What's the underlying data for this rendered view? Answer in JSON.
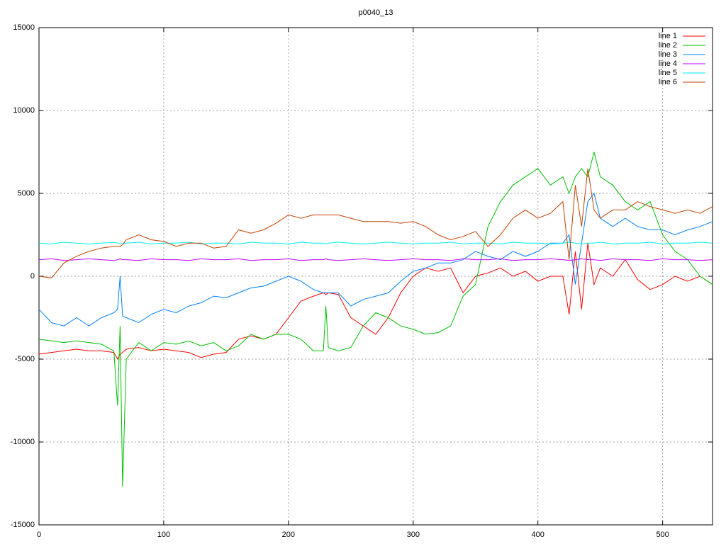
{
  "chart_data": {
    "type": "line",
    "title": "p0040_13",
    "x": [
      0,
      10,
      20,
      30,
      40,
      50,
      60,
      63,
      65,
      67,
      70,
      80,
      90,
      100,
      110,
      120,
      130,
      140,
      150,
      160,
      170,
      180,
      190,
      200,
      210,
      220,
      228,
      230,
      232,
      240,
      250,
      260,
      270,
      280,
      290,
      300,
      310,
      320,
      330,
      340,
      350,
      360,
      370,
      380,
      390,
      400,
      410,
      420,
      425,
      430,
      435,
      440,
      445,
      450,
      460,
      470,
      480,
      490,
      500,
      510,
      520,
      530,
      540
    ],
    "xlim": [
      0,
      540
    ],
    "xticks": [
      0,
      100,
      200,
      300,
      400,
      500
    ],
    "ylim": [
      -15000,
      15000
    ],
    "yticks": [
      -15000,
      -10000,
      -5000,
      0,
      5000,
      10000,
      15000
    ],
    "grid": true,
    "legend": "top-right",
    "series": [
      {
        "name": "line 1",
        "color": "#ff0000",
        "values": [
          -4700,
          -4600,
          -4500,
          -4400,
          -4500,
          -4500,
          -4600,
          -5000,
          -4700,
          -4600,
          -4400,
          -4300,
          -4500,
          -4400,
          -4500,
          -4600,
          -4900,
          -4700,
          -4600,
          -3800,
          -3600,
          -3800,
          -3500,
          -2500,
          -1500,
          -1200,
          -1000,
          -1100,
          -1000,
          -1100,
          -2500,
          -3000,
          -3500,
          -2500,
          -1000,
          0,
          500,
          300,
          500,
          -1000,
          0,
          200,
          500,
          0,
          300,
          -300,
          0,
          0,
          -2300,
          1500,
          -2000,
          2000,
          -500,
          500,
          0,
          1000,
          -200,
          -800,
          -500,
          0,
          -300,
          0,
          -500
        ]
      },
      {
        "name": "line 2",
        "color": "#00c000",
        "values": [
          -3800,
          -3900,
          -4000,
          -3900,
          -4000,
          -4100,
          -4500,
          -7800,
          -3000,
          -12700,
          -5000,
          -4000,
          -4500,
          -4000,
          -4100,
          -3900,
          -4200,
          -4000,
          -4500,
          -4200,
          -3500,
          -3800,
          -3500,
          -3500,
          -3800,
          -4500,
          -4500,
          -1800,
          -4300,
          -4500,
          -4300,
          -3000,
          -2200,
          -2500,
          -3000,
          -3200,
          -3500,
          -3400,
          -3000,
          -1200,
          -500,
          3000,
          4500,
          5500,
          6000,
          6500,
          5500,
          6000,
          5000,
          6000,
          6500,
          6000,
          7500,
          6000,
          5500,
          4500,
          4000,
          4500,
          2500,
          1500,
          1000,
          0,
          -500
        ]
      },
      {
        "name": "line 3",
        "color": "#0080ff",
        "values": [
          -2000,
          -2800,
          -3000,
          -2500,
          -3000,
          -2500,
          -2200,
          -2000,
          0,
          -2400,
          -2500,
          -2800,
          -2300,
          -2000,
          -2200,
          -1800,
          -1600,
          -1200,
          -1300,
          -1000,
          -700,
          -600,
          -300,
          0,
          -300,
          -800,
          -1000,
          -1000,
          -1000,
          -1000,
          -1800,
          -1400,
          -1200,
          -1000,
          -300,
          300,
          500,
          800,
          800,
          1000,
          1500,
          1200,
          1000,
          1500,
          1200,
          1500,
          2000,
          2000,
          2500,
          -500,
          2000,
          4500,
          5000,
          3500,
          3000,
          3500,
          3000,
          2800,
          2800,
          2500,
          2800,
          3000,
          3300
        ]
      },
      {
        "name": "line 4",
        "color": "#c000ff",
        "values": [
          1000,
          1050,
          950,
          1000,
          1050,
          1000,
          950,
          1000,
          1050,
          1000,
          1000,
          950,
          1050,
          1000,
          1000,
          950,
          1050,
          1000,
          1000,
          1050,
          950,
          1000,
          1000,
          1050,
          950,
          1000,
          1000,
          1050,
          1000,
          950,
          1000,
          1050,
          1000,
          950,
          1000,
          1050,
          1000,
          1000,
          950,
          1050,
          1000,
          1000,
          1050,
          950,
          1000,
          1000,
          1050,
          1000,
          950,
          1000,
          1050,
          1000,
          1000,
          950,
          1050,
          1000,
          1000,
          950,
          1050,
          1000,
          1000,
          950,
          1000
        ]
      },
      {
        "name": "line 5",
        "color": "#00eeee",
        "values": [
          2000,
          1950,
          2050,
          2000,
          1950,
          2000,
          2050,
          2000,
          1950,
          2000,
          2000,
          2050,
          1950,
          2000,
          2000,
          2050,
          1950,
          2000,
          2000,
          1950,
          2050,
          2000,
          2000,
          1950,
          2050,
          2000,
          2000,
          1950,
          2000,
          2050,
          2000,
          1950,
          2000,
          2050,
          2000,
          1950,
          2000,
          2000,
          2050,
          1950,
          2000,
          2000,
          1950,
          2050,
          2000,
          2000,
          1950,
          2000,
          2050,
          2000,
          1950,
          2000,
          2000,
          2050,
          1950,
          2000,
          2000,
          2050,
          1950,
          2000,
          2000,
          2050,
          2000
        ]
      },
      {
        "name": "line 6",
        "color": "#c04000",
        "values": [
          0,
          -100,
          800,
          1200,
          1500,
          1700,
          1800,
          1800,
          1800,
          1900,
          2200,
          2500,
          2200,
          2100,
          1800,
          2000,
          2000,
          1700,
          1800,
          2800,
          2600,
          2800,
          3200,
          3700,
          3500,
          3700,
          3700,
          3700,
          3700,
          3700,
          3500,
          3300,
          3300,
          3300,
          3200,
          3300,
          3000,
          2500,
          2200,
          2400,
          2700,
          1800,
          2500,
          3500,
          4000,
          3500,
          3800,
          4500,
          1000,
          5500,
          3000,
          6500,
          4000,
          3500,
          4000,
          4000,
          4500,
          4200,
          4000,
          3800,
          4000,
          3800,
          4200
        ]
      }
    ]
  }
}
